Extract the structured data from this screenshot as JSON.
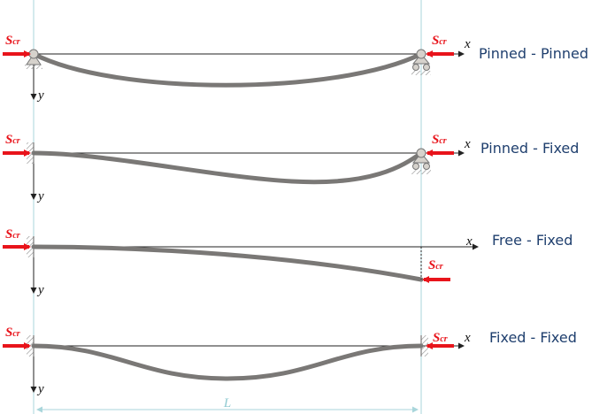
{
  "cases": [
    {
      "name": "pinned-pinned",
      "label": "Pinned - Pinned",
      "left_support": "pin",
      "right_support": "roller",
      "right_force_label": "S",
      "right_force_sub": "cr",
      "left_force_label": "S",
      "left_force_sub": "cr",
      "x_label": "x",
      "y_label": "y"
    },
    {
      "name": "pinned-fixed",
      "label": "Pinned - Fixed",
      "left_support": "fixed",
      "right_support": "roller",
      "right_force_label": "S",
      "right_force_sub": "cr",
      "left_force_label": "S",
      "left_force_sub": "cr",
      "x_label": "x",
      "y_label": "y"
    },
    {
      "name": "free-fixed",
      "label": "Free - Fixed",
      "left_support": "fixed",
      "right_support": "free",
      "right_force_label": "S",
      "right_force_sub": "cr",
      "left_force_label": "S",
      "left_force_sub": "cr",
      "x_label": "x",
      "y_label": "y"
    },
    {
      "name": "fixed-fixed",
      "label": "Fixed - Fixed",
      "left_support": "fixed",
      "right_support": "fixed",
      "right_force_label": "S",
      "right_force_sub": "cr",
      "left_force_label": "S",
      "left_force_sub": "cr",
      "x_label": "x",
      "y_label": "y"
    }
  ],
  "dimension_label": "L",
  "colors": {
    "beam": "#7a7876",
    "force": "#e8141b",
    "label": "#1f3f6e",
    "guide": "#a9d6db",
    "axis": "#222222",
    "support_fill": "#d6d2cc",
    "hatch": "#8a8a8a"
  }
}
